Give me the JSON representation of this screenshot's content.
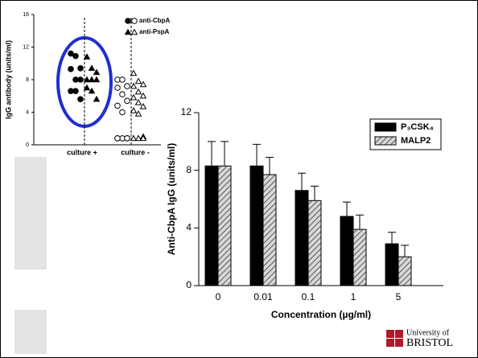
{
  "chart_data": [
    {
      "type": "dotplot",
      "ylabel": "IgG antibody (units/ml)",
      "categories": [
        "culture +",
        "culture -"
      ],
      "filled_by_category": [
        true,
        false
      ],
      "ylim": [
        0,
        16
      ],
      "yticks": [
        0,
        4,
        8,
        12,
        16
      ],
      "color": "#000000",
      "series": [
        {
          "name": "anti-CbpA",
          "marker": "circle",
          "values": [
            [
              11.2,
              10.9,
              9.4,
              9.3,
              8.0,
              8.0,
              6.6,
              6.6,
              5.6
            ],
            [
              8.0,
              8.0,
              7.2,
              7.0,
              6.2,
              5.4,
              4.8,
              4.0,
              0.8,
              0.8,
              0.8,
              0.8,
              0.8
            ]
          ]
        },
        {
          "name": "anti-PspA",
          "marker": "triangle",
          "values": [
            [
              10.8,
              9.4,
              8.9,
              8.0,
              8.0,
              8.0,
              7.0,
              6.6,
              5.6
            ],
            [
              8.8,
              7.8,
              7.4,
              7.2,
              6.5,
              6.0,
              5.8,
              5.2,
              4.7,
              4.2,
              3.8,
              1.0,
              0.8,
              0.8,
              0.8
            ]
          ]
        }
      ]
    },
    {
      "type": "bar",
      "xlabel": "Concentration (µg/ml)",
      "ylabel": "Anti-CbpA IgG (units/ml)",
      "categories": [
        "0",
        "0.01",
        "0.1",
        "1",
        "5"
      ],
      "ylim": [
        0,
        12
      ],
      "yticks": [
        0,
        4,
        8,
        12
      ],
      "series": [
        {
          "name": "P₃CSK₄",
          "color": "#000000",
          "pattern": "solid",
          "values": [
            8.3,
            8.3,
            6.6,
            4.8,
            2.9
          ],
          "errors": [
            1.7,
            1.5,
            1.2,
            1.0,
            0.8
          ]
        },
        {
          "name": "MALP2",
          "color": "#999999",
          "pattern": "hatch",
          "values": [
            8.3,
            7.7,
            5.9,
            3.9,
            2.0
          ],
          "errors": [
            1.7,
            1.2,
            1.0,
            1.0,
            0.8
          ]
        }
      ]
    }
  ],
  "logo": {
    "line1": "University of",
    "line2": "BRISTOL"
  }
}
